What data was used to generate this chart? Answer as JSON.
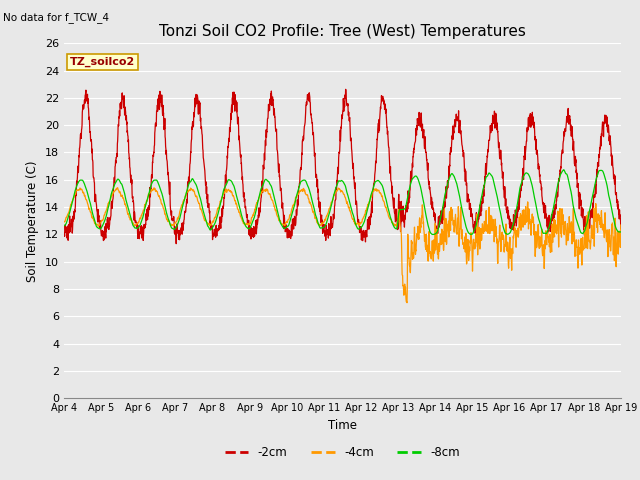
{
  "title": "Tonzi Soil CO2 Profile: Tree (West) Temperatures",
  "subtitle": "No data for f_TCW_4",
  "ylabel": "Soil Temperature (C)",
  "xlabel": "Time",
  "annotation": "TZ_soilco2",
  "ylim": [
    0,
    26
  ],
  "yticks": [
    0,
    2,
    4,
    6,
    8,
    10,
    12,
    14,
    16,
    18,
    20,
    22,
    24,
    26
  ],
  "xtick_labels": [
    "Apr 4",
    "Apr 5",
    "Apr 6",
    "Apr 7",
    "Apr 8",
    "Apr 9",
    "Apr 10",
    "Apr 11",
    "Apr 12",
    "Apr 13",
    "Apr 14",
    "Apr 15",
    "Apr 16",
    "Apr 17",
    "Apr 18",
    "Apr 19"
  ],
  "line_colors": [
    "#cc0000",
    "#ff9900",
    "#00cc00"
  ],
  "line_labels": [
    "-2cm",
    "-4cm",
    "-8cm"
  ],
  "background_color": "#e8e8e8",
  "grid_color": "#ffffff",
  "title_fontsize": 11,
  "annotation_bg": "#ffffcc",
  "annotation_fg": "#990000",
  "annotation_border": "#cc9900"
}
